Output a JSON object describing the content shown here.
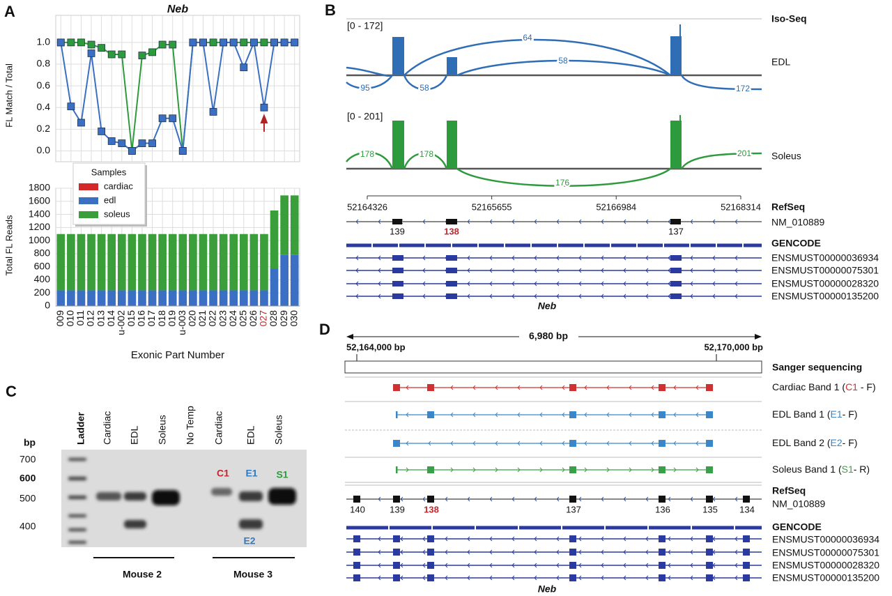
{
  "panel_labels": [
    "A",
    "B",
    "C",
    "D"
  ],
  "chart_data": [
    {
      "type": "line",
      "title": "Neb",
      "y_label": "FL Match / Total",
      "categories": [
        "009",
        "010",
        "011",
        "012",
        "013",
        "014",
        "u-002",
        "015",
        "016",
        "017",
        "018",
        "019",
        "u-003",
        "020",
        "021",
        "022",
        "023",
        "024",
        "025",
        "026",
        "027",
        "028",
        "029",
        "030"
      ],
      "ylim": [
        -0.1,
        1.25
      ],
      "yticks": [
        {
          "value": 0,
          "label": "0.0"
        },
        0.2,
        0.4,
        0.6,
        0.8,
        {
          "value": 1,
          "label": "1.0"
        }
      ],
      "grid": true,
      "series": [
        {
          "name": "soleus",
          "color": "#2e9a3e",
          "values": [
            1.0,
            1.0,
            1.0,
            0.98,
            0.95,
            0.89,
            0.89,
            0.0,
            0.88,
            0.91,
            0.98,
            0.98,
            0.0,
            1.0,
            1.0,
            1.0,
            1.0,
            1.0,
            1.0,
            1.0,
            1.0,
            1.0,
            1.0,
            1.0
          ]
        },
        {
          "name": "edl",
          "color": "#3a6fc4",
          "values": [
            1.0,
            0.41,
            0.26,
            0.9,
            0.18,
            0.09,
            0.07,
            0.0,
            0.07,
            0.07,
            0.3,
            0.3,
            0.0,
            1.0,
            1.0,
            0.36,
            1.0,
            1.0,
            0.77,
            1.0,
            0.4,
            1.0,
            1.0,
            1.0
          ]
        }
      ]
    },
    {
      "type": "bar",
      "stacked": true,
      "y_label": "Total FL Reads",
      "x_label": "Exonic Part Number",
      "categories": [
        "009",
        "010",
        "011",
        "012",
        "013",
        "014",
        "u-002",
        "015",
        "016",
        "017",
        "018",
        "019",
        "u-003",
        "020",
        "021",
        "022",
        "023",
        "024",
        "025",
        "026",
        "027",
        "028",
        "029",
        "030"
      ],
      "ylim": [
        0,
        1800
      ],
      "yticks": [
        0,
        200,
        400,
        600,
        800,
        1000,
        1200,
        1400,
        1600,
        1800
      ],
      "grid": true,
      "legend_title": "Samples",
      "series": [
        {
          "name": "cardiac",
          "color": "#d62728",
          "values": [
            0,
            0,
            0,
            0,
            0,
            0,
            0,
            0,
            0,
            0,
            0,
            0,
            0,
            0,
            0,
            0,
            0,
            0,
            0,
            0,
            0,
            0,
            0,
            0
          ]
        },
        {
          "name": "edl",
          "color": "#3a6fc4",
          "values": [
            240,
            240,
            240,
            240,
            240,
            240,
            240,
            240,
            240,
            240,
            240,
            240,
            240,
            240,
            240,
            240,
            240,
            240,
            240,
            240,
            240,
            570,
            780,
            780
          ]
        },
        {
          "name": "soleus",
          "color": "#3a9e3a",
          "values": [
            860,
            860,
            860,
            860,
            860,
            860,
            860,
            860,
            860,
            860,
            860,
            860,
            860,
            860,
            860,
            860,
            860,
            860,
            860,
            860,
            860,
            890,
            910,
            910
          ]
        }
      ]
    }
  ],
  "panel_b": {
    "track_title": "Iso-Seq",
    "edl": {
      "range": "[0 - 172]",
      "name": "EDL",
      "junctions": [
        95,
        58,
        64,
        58,
        172
      ]
    },
    "soleus": {
      "range": "[0 - 201]",
      "name": "Soleus",
      "junctions": [
        178,
        178,
        176,
        201
      ]
    },
    "coordinates": [
      52164326,
      52165655,
      52166984,
      52168314
    ],
    "refseq": {
      "title": "RefSeq",
      "transcript": "NM_010889",
      "exons": [
        "139",
        "138",
        "137"
      ]
    },
    "gencode": {
      "title": "GENCODE",
      "transcripts": [
        "ENSMUST00000036934",
        "ENSMUST00000075301",
        "ENSMUST00000028320",
        "ENSMUST00000135200"
      ]
    },
    "gene": "Neb"
  },
  "panel_c": {
    "ladder": "Ladder",
    "lanes": [
      "Cardiac",
      "EDL",
      "Soleus",
      "No Temp",
      "Cardiac",
      "EDL",
      "Soleus"
    ],
    "bp_label": "bp",
    "bp_marks": [
      700,
      600,
      500,
      400
    ],
    "band_labels": [
      "C1",
      "E1",
      "S1",
      "E2"
    ],
    "groups": [
      "Mouse 2",
      "Mouse 3"
    ]
  },
  "panel_d": {
    "span": "6,980 bp",
    "start": "52,164,000 bp",
    "end": "52,170,000 bp",
    "track_title": "Sanger sequencing",
    "bands": [
      {
        "prefix": "Cardiac Band 1 (",
        "code": "C1",
        "suffix": " - F)"
      },
      {
        "prefix": "EDL Band 1 (",
        "code": "E1",
        "suffix": "- F)"
      },
      {
        "prefix": "EDL Band 2 (",
        "code": "E2",
        "suffix": "- F)"
      },
      {
        "prefix": "Soleus Band 1 (",
        "code": "S1",
        "suffix": "- R)"
      }
    ],
    "refseq": {
      "title": "RefSeq",
      "transcript": "NM_010889",
      "exons": [
        "140",
        "139",
        "138",
        "137",
        "136",
        "135",
        "134"
      ]
    },
    "gencode": {
      "title": "GENCODE",
      "transcripts": [
        "ENSMUST00000036934",
        "ENSMUST00000075301",
        "ENSMUST00000028320",
        "ENSMUST00000135200"
      ]
    },
    "gene": "Neb"
  }
}
